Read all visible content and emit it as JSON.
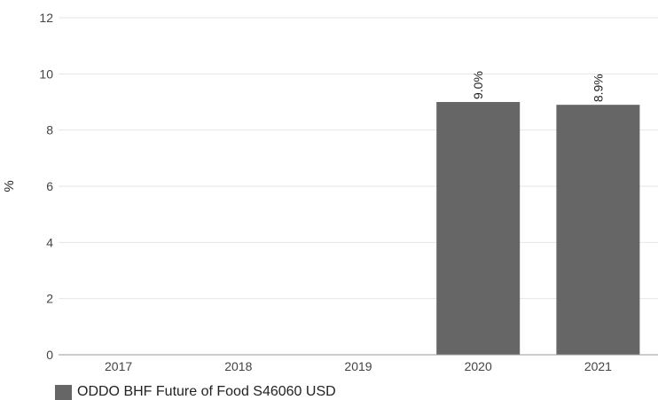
{
  "chart_data": {
    "type": "bar",
    "categories": [
      "2017",
      "2018",
      "2019",
      "2020",
      "2021"
    ],
    "series": [
      {
        "name": "ODDO BHF Future of Food S46060 USD",
        "values": [
          null,
          null,
          null,
          9.0,
          8.9
        ],
        "labels": [
          "",
          "",
          "",
          "9.0%",
          "8.9%"
        ],
        "color": "#666666"
      }
    ],
    "ylabel": "%",
    "ylim": [
      0,
      12
    ],
    "yticks": [
      "0",
      "2",
      "4",
      "6",
      "8",
      "10",
      "12"
    ],
    "grid": true,
    "legend_position": "bottom-left"
  }
}
